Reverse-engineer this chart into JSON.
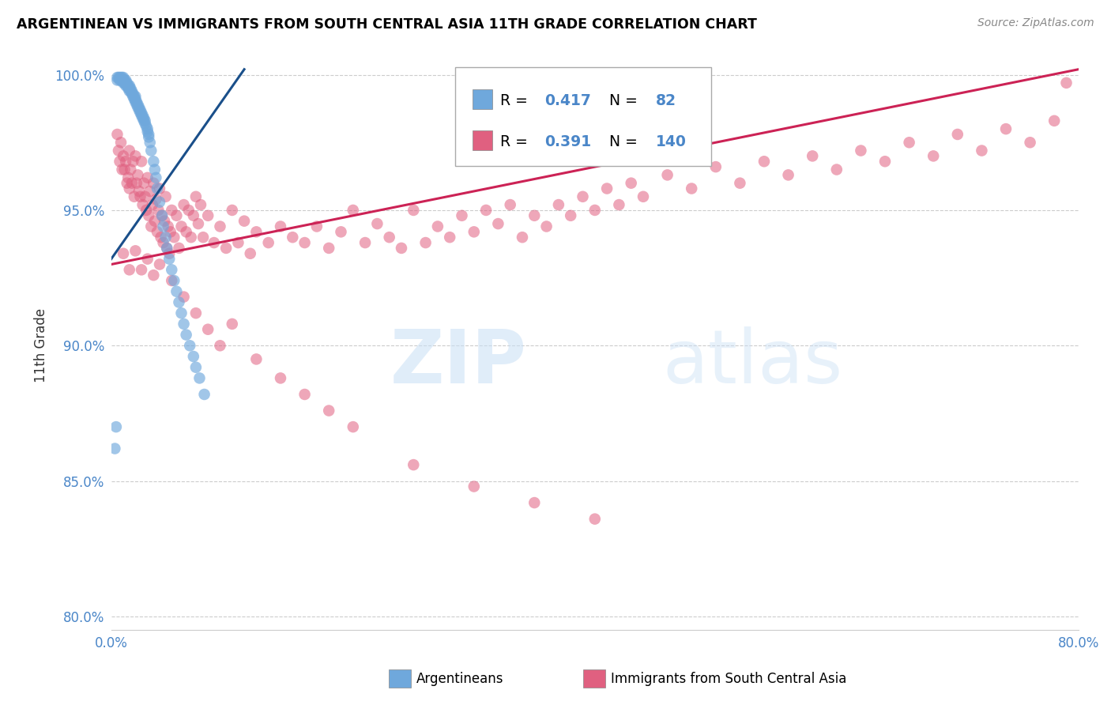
{
  "title": "ARGENTINEAN VS IMMIGRANTS FROM SOUTH CENTRAL ASIA 11TH GRADE CORRELATION CHART",
  "source": "Source: ZipAtlas.com",
  "ylabel": "11th Grade",
  "xlim": [
    0.0,
    0.8
  ],
  "ylim": [
    0.795,
    1.005
  ],
  "xticks": [
    0.0,
    0.1,
    0.2,
    0.3,
    0.4,
    0.5,
    0.6,
    0.7,
    0.8
  ],
  "xticklabels": [
    "0.0%",
    "",
    "",
    "",
    "",
    "",
    "",
    "",
    "80.0%"
  ],
  "yticks": [
    0.8,
    0.85,
    0.9,
    0.95,
    1.0
  ],
  "yticklabels": [
    "80.0%",
    "85.0%",
    "90.0%",
    "95.0%",
    "100.0%"
  ],
  "blue_R": 0.417,
  "blue_N": 82,
  "pink_R": 0.391,
  "pink_N": 140,
  "blue_color": "#6fa8dc",
  "pink_color": "#e06080",
  "blue_line_color": "#1a4f8a",
  "pink_line_color": "#cc2255",
  "legend_label_blue": "Argentineans",
  "legend_label_pink": "Immigrants from South Central Asia",
  "watermark_zip": "ZIP",
  "watermark_atlas": "atlas",
  "blue_line_x": [
    0.0,
    0.11
  ],
  "blue_line_y": [
    0.932,
    1.002
  ],
  "pink_line_x": [
    0.0,
    0.8
  ],
  "pink_line_y": [
    0.93,
    1.002
  ],
  "blue_scatter_x": [
    0.005,
    0.005,
    0.006,
    0.007,
    0.007,
    0.008,
    0.008,
    0.009,
    0.009,
    0.01,
    0.01,
    0.01,
    0.011,
    0.011,
    0.012,
    0.012,
    0.012,
    0.013,
    0.013,
    0.014,
    0.014,
    0.015,
    0.015,
    0.015,
    0.016,
    0.016,
    0.017,
    0.017,
    0.018,
    0.018,
    0.019,
    0.019,
    0.02,
    0.02,
    0.02,
    0.021,
    0.021,
    0.022,
    0.022,
    0.023,
    0.023,
    0.024,
    0.024,
    0.025,
    0.025,
    0.026,
    0.026,
    0.027,
    0.027,
    0.028,
    0.028,
    0.029,
    0.03,
    0.03,
    0.031,
    0.031,
    0.032,
    0.033,
    0.035,
    0.036,
    0.037,
    0.038,
    0.04,
    0.042,
    0.043,
    0.045,
    0.046,
    0.048,
    0.05,
    0.052,
    0.054,
    0.056,
    0.058,
    0.06,
    0.062,
    0.065,
    0.068,
    0.07,
    0.073,
    0.077,
    0.003,
    0.004
  ],
  "blue_scatter_y": [
    0.998,
    0.999,
    0.999,
    0.998,
    0.999,
    0.998,
    0.999,
    0.998,
    0.999,
    0.997,
    0.998,
    0.999,
    0.997,
    0.998,
    0.996,
    0.997,
    0.998,
    0.996,
    0.997,
    0.995,
    0.996,
    0.994,
    0.995,
    0.996,
    0.994,
    0.995,
    0.993,
    0.994,
    0.992,
    0.993,
    0.991,
    0.992,
    0.99,
    0.991,
    0.992,
    0.989,
    0.99,
    0.988,
    0.989,
    0.987,
    0.988,
    0.986,
    0.987,
    0.985,
    0.986,
    0.984,
    0.985,
    0.983,
    0.984,
    0.982,
    0.983,
    0.981,
    0.979,
    0.98,
    0.977,
    0.978,
    0.975,
    0.972,
    0.968,
    0.965,
    0.962,
    0.958,
    0.953,
    0.948,
    0.944,
    0.94,
    0.936,
    0.932,
    0.928,
    0.924,
    0.92,
    0.916,
    0.912,
    0.908,
    0.904,
    0.9,
    0.896,
    0.892,
    0.888,
    0.882,
    0.862,
    0.87
  ],
  "pink_scatter_x": [
    0.005,
    0.006,
    0.007,
    0.008,
    0.009,
    0.01,
    0.011,
    0.012,
    0.013,
    0.014,
    0.015,
    0.015,
    0.016,
    0.017,
    0.018,
    0.019,
    0.02,
    0.021,
    0.022,
    0.023,
    0.024,
    0.025,
    0.026,
    0.027,
    0.028,
    0.029,
    0.03,
    0.031,
    0.032,
    0.033,
    0.034,
    0.035,
    0.036,
    0.037,
    0.038,
    0.039,
    0.04,
    0.041,
    0.042,
    0.043,
    0.044,
    0.045,
    0.046,
    0.047,
    0.048,
    0.049,
    0.05,
    0.052,
    0.054,
    0.056,
    0.058,
    0.06,
    0.062,
    0.064,
    0.066,
    0.068,
    0.07,
    0.072,
    0.074,
    0.076,
    0.08,
    0.085,
    0.09,
    0.095,
    0.1,
    0.105,
    0.11,
    0.115,
    0.12,
    0.13,
    0.14,
    0.15,
    0.16,
    0.17,
    0.18,
    0.19,
    0.2,
    0.21,
    0.22,
    0.23,
    0.24,
    0.25,
    0.26,
    0.27,
    0.28,
    0.29,
    0.3,
    0.31,
    0.32,
    0.33,
    0.34,
    0.35,
    0.36,
    0.37,
    0.38,
    0.39,
    0.4,
    0.41,
    0.42,
    0.43,
    0.44,
    0.46,
    0.48,
    0.5,
    0.52,
    0.54,
    0.56,
    0.58,
    0.6,
    0.62,
    0.64,
    0.66,
    0.68,
    0.7,
    0.72,
    0.74,
    0.76,
    0.78,
    0.01,
    0.015,
    0.02,
    0.025,
    0.03,
    0.035,
    0.04,
    0.05,
    0.06,
    0.07,
    0.08,
    0.09,
    0.1,
    0.12,
    0.14,
    0.16,
    0.18,
    0.2,
    0.25,
    0.3,
    0.35,
    0.4,
    0.79
  ],
  "pink_scatter_y": [
    0.978,
    0.972,
    0.968,
    0.975,
    0.965,
    0.97,
    0.965,
    0.968,
    0.96,
    0.962,
    0.972,
    0.958,
    0.965,
    0.96,
    0.968,
    0.955,
    0.97,
    0.96,
    0.963,
    0.957,
    0.955,
    0.968,
    0.952,
    0.96,
    0.955,
    0.95,
    0.962,
    0.948,
    0.957,
    0.944,
    0.952,
    0.96,
    0.946,
    0.954,
    0.942,
    0.95,
    0.958,
    0.94,
    0.948,
    0.938,
    0.946,
    0.955,
    0.936,
    0.944,
    0.934,
    0.942,
    0.95,
    0.94,
    0.948,
    0.936,
    0.944,
    0.952,
    0.942,
    0.95,
    0.94,
    0.948,
    0.955,
    0.945,
    0.952,
    0.94,
    0.948,
    0.938,
    0.944,
    0.936,
    0.95,
    0.938,
    0.946,
    0.934,
    0.942,
    0.938,
    0.944,
    0.94,
    0.938,
    0.944,
    0.936,
    0.942,
    0.95,
    0.938,
    0.945,
    0.94,
    0.936,
    0.95,
    0.938,
    0.944,
    0.94,
    0.948,
    0.942,
    0.95,
    0.945,
    0.952,
    0.94,
    0.948,
    0.944,
    0.952,
    0.948,
    0.955,
    0.95,
    0.958,
    0.952,
    0.96,
    0.955,
    0.963,
    0.958,
    0.966,
    0.96,
    0.968,
    0.963,
    0.97,
    0.965,
    0.972,
    0.968,
    0.975,
    0.97,
    0.978,
    0.972,
    0.98,
    0.975,
    0.983,
    0.934,
    0.928,
    0.935,
    0.928,
    0.932,
    0.926,
    0.93,
    0.924,
    0.918,
    0.912,
    0.906,
    0.9,
    0.908,
    0.895,
    0.888,
    0.882,
    0.876,
    0.87,
    0.856,
    0.848,
    0.842,
    0.836,
    0.997
  ]
}
